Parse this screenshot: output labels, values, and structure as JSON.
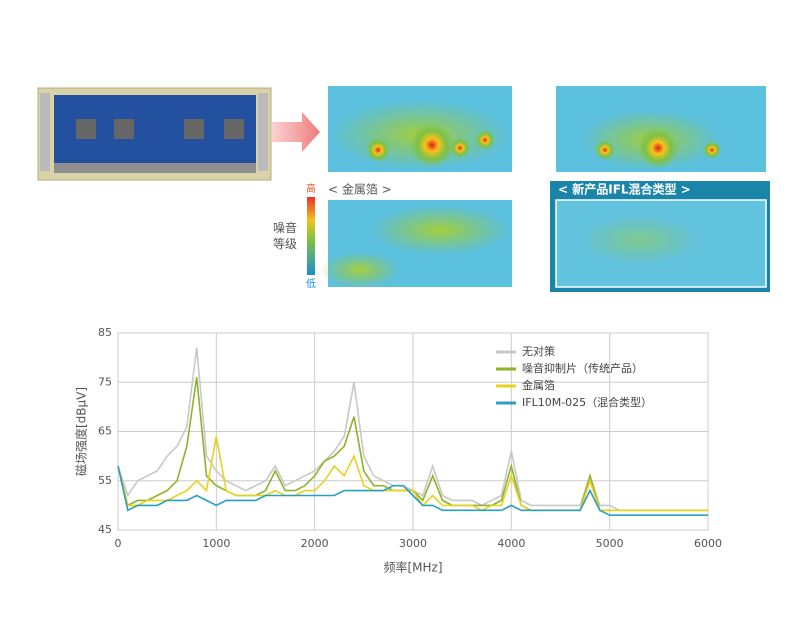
{
  "heatmap_panel": {
    "metal_label": "< 金属箔 >",
    "ifl_label": "< 新产品IFL混合类型 >",
    "scale_high": "高",
    "scale_low": "低",
    "scale_title": "噪音等级"
  },
  "chart_data": {
    "type": "line",
    "y_label": "磁场强度[dBμV]",
    "x_label": "频率[MHz]",
    "xlim": [
      0,
      6000
    ],
    "ylim": [
      45,
      85
    ],
    "xticks": [
      0,
      1000,
      2000,
      3000,
      4000,
      5000,
      6000
    ],
    "yticks": [
      45,
      55,
      65,
      75,
      85
    ],
    "grid": true,
    "legend": "upper right",
    "x": [
      0,
      100,
      200,
      300,
      400,
      500,
      600,
      700,
      800,
      900,
      1000,
      1100,
      1200,
      1300,
      1400,
      1500,
      1600,
      1700,
      1800,
      1900,
      2000,
      2100,
      2200,
      2300,
      2400,
      2500,
      2600,
      2700,
      2800,
      2900,
      3000,
      3100,
      3200,
      3300,
      3400,
      3500,
      3600,
      3700,
      3800,
      3900,
      4000,
      4100,
      4200,
      4300,
      4400,
      4500,
      4600,
      4700,
      4800,
      4900,
      5000,
      5100,
      5200,
      5300,
      5400,
      5500,
      5600,
      5700,
      5800,
      5900,
      6000
    ],
    "series": [
      {
        "name": "无对策",
        "color": "#c8c8c8",
        "values": [
          58,
          52,
          55,
          56,
          57,
          60,
          62,
          66,
          82,
          60,
          57,
          55,
          54,
          53,
          54,
          55,
          58,
          54,
          55,
          56,
          57,
          59,
          61,
          64,
          75,
          60,
          56,
          55,
          54,
          54,
          53,
          52,
          58,
          52,
          51,
          51,
          51,
          50,
          51,
          52,
          61,
          51,
          50,
          50,
          50,
          50,
          50,
          50,
          56,
          50,
          50,
          49,
          49,
          49,
          49,
          49,
          49,
          49,
          49,
          49,
          49
        ]
      },
      {
        "name": "噪音抑制片（传统产品）",
        "color": "#8db32a",
        "values": [
          58,
          50,
          51,
          51,
          52,
          53,
          55,
          62,
          76,
          56,
          54,
          53,
          52,
          52,
          52,
          53,
          57,
          53,
          53,
          54,
          56,
          59,
          60,
          62,
          68,
          57,
          54,
          54,
          53,
          53,
          53,
          51,
          56,
          51,
          50,
          50,
          50,
          50,
          50,
          51,
          58,
          50,
          49,
          49,
          49,
          49,
          49,
          49,
          56,
          49,
          49,
          49,
          49,
          49,
          49,
          49,
          49,
          49,
          49,
          49,
          49
        ]
      },
      {
        "name": "金属箔",
        "color": "#e8d21a",
        "values": [
          58,
          50,
          50,
          51,
          51,
          51,
          52,
          53,
          55,
          53,
          64,
          53,
          52,
          52,
          52,
          52,
          53,
          52,
          52,
          53,
          53,
          55,
          58,
          56,
          60,
          54,
          53,
          53,
          53,
          53,
          53,
          50,
          52,
          50,
          50,
          50,
          50,
          49,
          50,
          50,
          56,
          50,
          49,
          49,
          49,
          49,
          49,
          49,
          55,
          49,
          49,
          49,
          49,
          49,
          49,
          49,
          49,
          49,
          49,
          49,
          49
        ]
      },
      {
        "name": "IFL10M-025（混合类型）",
        "color": "#2a9fc0",
        "values": [
          58,
          49,
          50,
          50,
          50,
          51,
          51,
          51,
          52,
          51,
          50,
          51,
          51,
          51,
          51,
          52,
          52,
          52,
          52,
          52,
          52,
          52,
          52,
          53,
          53,
          53,
          53,
          53,
          54,
          54,
          52,
          50,
          50,
          49,
          49,
          49,
          49,
          49,
          49,
          49,
          50,
          49,
          49,
          49,
          49,
          49,
          49,
          49,
          53,
          49,
          48,
          48,
          48,
          48,
          48,
          48,
          48,
          48,
          48,
          48,
          48
        ]
      }
    ]
  }
}
